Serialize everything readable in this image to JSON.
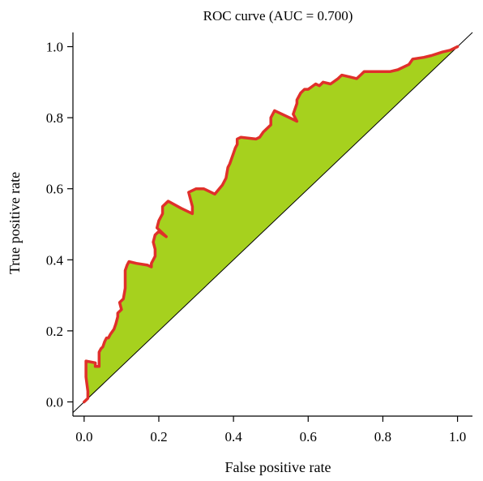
{
  "chart_data": {
    "type": "area",
    "title": "ROC curve (AUC = 0.700)",
    "xlabel": "False positive rate",
    "ylabel": "True positive rate",
    "xlim": [
      -0.03,
      1.04
    ],
    "ylim": [
      -0.04,
      1.04
    ],
    "xticks": [
      "0.0",
      "0.2",
      "0.4",
      "0.6",
      "0.8",
      "1.0"
    ],
    "yticks": [
      "0.0",
      "0.2",
      "0.4",
      "0.6",
      "0.8",
      "1.0"
    ],
    "grid": false,
    "legend": "none",
    "colors": {
      "curve": "#e0302a",
      "fill": "#a6d11e",
      "diagonal": "#000000"
    },
    "series": [
      {
        "points": [
          [
            0.0,
            0.0
          ],
          [
            0.005,
            0.005
          ],
          [
            0.01,
            0.01
          ],
          [
            0.01,
            0.03
          ],
          [
            0.005,
            0.07
          ],
          [
            0.005,
            0.115
          ],
          [
            0.03,
            0.11
          ],
          [
            0.03,
            0.1
          ],
          [
            0.04,
            0.1
          ],
          [
            0.04,
            0.14
          ],
          [
            0.045,
            0.15
          ],
          [
            0.05,
            0.155
          ],
          [
            0.055,
            0.17
          ],
          [
            0.06,
            0.18
          ],
          [
            0.065,
            0.18
          ],
          [
            0.07,
            0.19
          ],
          [
            0.08,
            0.205
          ],
          [
            0.085,
            0.22
          ],
          [
            0.09,
            0.24
          ],
          [
            0.09,
            0.25
          ],
          [
            0.1,
            0.26
          ],
          [
            0.095,
            0.28
          ],
          [
            0.105,
            0.29
          ],
          [
            0.11,
            0.32
          ],
          [
            0.11,
            0.37
          ],
          [
            0.115,
            0.385
          ],
          [
            0.12,
            0.395
          ],
          [
            0.14,
            0.39
          ],
          [
            0.17,
            0.385
          ],
          [
            0.18,
            0.38
          ],
          [
            0.18,
            0.39
          ],
          [
            0.19,
            0.41
          ],
          [
            0.19,
            0.43
          ],
          [
            0.185,
            0.45
          ],
          [
            0.19,
            0.47
          ],
          [
            0.2,
            0.48
          ],
          [
            0.22,
            0.465
          ],
          [
            0.195,
            0.49
          ],
          [
            0.2,
            0.51
          ],
          [
            0.21,
            0.53
          ],
          [
            0.21,
            0.55
          ],
          [
            0.22,
            0.56
          ],
          [
            0.225,
            0.565
          ],
          [
            0.26,
            0.545
          ],
          [
            0.29,
            0.53
          ],
          [
            0.29,
            0.55
          ],
          [
            0.28,
            0.59
          ],
          [
            0.3,
            0.6
          ],
          [
            0.32,
            0.6
          ],
          [
            0.35,
            0.585
          ],
          [
            0.37,
            0.61
          ],
          [
            0.375,
            0.62
          ],
          [
            0.38,
            0.63
          ],
          [
            0.385,
            0.66
          ],
          [
            0.39,
            0.67
          ],
          [
            0.4,
            0.7
          ],
          [
            0.405,
            0.715
          ],
          [
            0.41,
            0.725
          ],
          [
            0.41,
            0.74
          ],
          [
            0.42,
            0.745
          ],
          [
            0.46,
            0.74
          ],
          [
            0.47,
            0.745
          ],
          [
            0.48,
            0.76
          ],
          [
            0.49,
            0.77
          ],
          [
            0.5,
            0.78
          ],
          [
            0.5,
            0.8
          ],
          [
            0.51,
            0.82
          ],
          [
            0.55,
            0.8
          ],
          [
            0.57,
            0.79
          ],
          [
            0.56,
            0.81
          ],
          [
            0.57,
            0.84
          ],
          [
            0.57,
            0.85
          ],
          [
            0.58,
            0.87
          ],
          [
            0.59,
            0.88
          ],
          [
            0.6,
            0.88
          ],
          [
            0.62,
            0.895
          ],
          [
            0.63,
            0.89
          ],
          [
            0.64,
            0.9
          ],
          [
            0.66,
            0.895
          ],
          [
            0.68,
            0.91
          ],
          [
            0.69,
            0.92
          ],
          [
            0.71,
            0.915
          ],
          [
            0.73,
            0.91
          ],
          [
            0.74,
            0.92
          ],
          [
            0.75,
            0.93
          ],
          [
            0.78,
            0.93
          ],
          [
            0.79,
            0.93
          ],
          [
            0.82,
            0.93
          ],
          [
            0.84,
            0.935
          ],
          [
            0.87,
            0.95
          ],
          [
            0.88,
            0.965
          ],
          [
            0.91,
            0.97
          ],
          [
            0.93,
            0.975
          ],
          [
            0.96,
            0.985
          ],
          [
            0.98,
            0.99
          ],
          [
            1.0,
            1.0
          ]
        ]
      }
    ]
  }
}
